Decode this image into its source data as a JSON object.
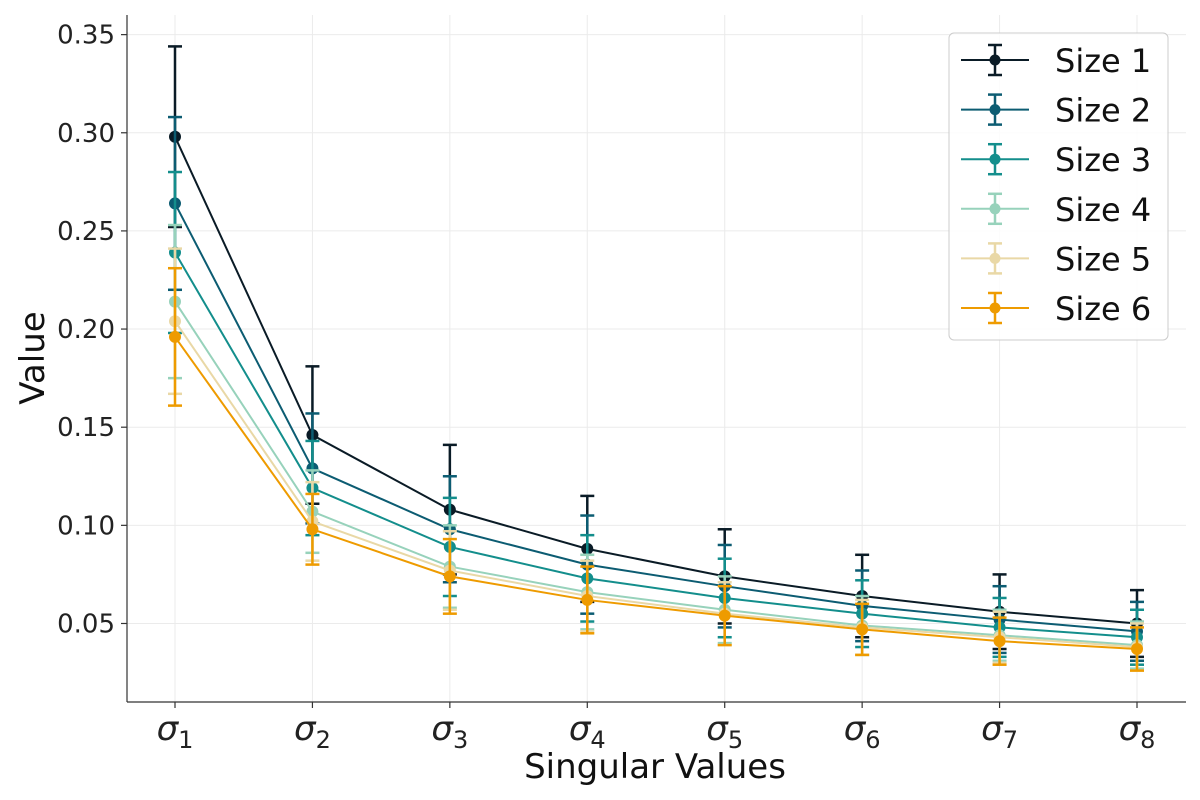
{
  "chart_data": {
    "type": "line",
    "xlabel": "Singular Values",
    "ylabel": "Value",
    "categories": [
      {
        "base": "σ",
        "sub": "1"
      },
      {
        "base": "σ",
        "sub": "2"
      },
      {
        "base": "σ",
        "sub": "3"
      },
      {
        "base": "σ",
        "sub": "4"
      },
      {
        "base": "σ",
        "sub": "5"
      },
      {
        "base": "σ",
        "sub": "6"
      },
      {
        "base": "σ",
        "sub": "7"
      },
      {
        "base": "σ",
        "sub": "8"
      }
    ],
    "ylim": [
      0.01,
      0.36
    ],
    "yticks": [
      0.05,
      0.1,
      0.15,
      0.2,
      0.25,
      0.3,
      0.35
    ],
    "ytick_labels": [
      "0.05",
      "0.10",
      "0.15",
      "0.20",
      "0.25",
      "0.30",
      "0.35"
    ],
    "grid": true,
    "legend_position": "top-right",
    "series": [
      {
        "name": "Size 1",
        "color": "#0a1b26",
        "values": [
          0.298,
          0.146,
          0.108,
          0.088,
          0.074,
          0.064,
          0.056,
          0.05
        ],
        "errors": [
          0.046,
          0.035,
          0.033,
          0.027,
          0.024,
          0.021,
          0.019,
          0.017
        ]
      },
      {
        "name": "Size 2",
        "color": "#0c5c72",
        "values": [
          0.264,
          0.129,
          0.098,
          0.08,
          0.069,
          0.059,
          0.052,
          0.046
        ],
        "errors": [
          0.044,
          0.028,
          0.027,
          0.025,
          0.021,
          0.018,
          0.017,
          0.015
        ]
      },
      {
        "name": "Size 3",
        "color": "#138e8c",
        "values": [
          0.239,
          0.119,
          0.089,
          0.073,
          0.063,
          0.055,
          0.048,
          0.043
        ],
        "errors": [
          0.041,
          0.024,
          0.025,
          0.022,
          0.02,
          0.017,
          0.015,
          0.014
        ]
      },
      {
        "name": "Size 4",
        "color": "#97d2bb",
        "values": [
          0.214,
          0.107,
          0.079,
          0.066,
          0.057,
          0.049,
          0.044,
          0.039
        ],
        "errors": [
          0.039,
          0.021,
          0.021,
          0.019,
          0.017,
          0.015,
          0.013,
          0.012
        ]
      },
      {
        "name": "Size 5",
        "color": "#e9d8a6",
        "values": [
          0.204,
          0.102,
          0.077,
          0.064,
          0.055,
          0.048,
          0.043,
          0.038
        ],
        "errors": [
          0.037,
          0.02,
          0.02,
          0.018,
          0.016,
          0.014,
          0.013,
          0.012
        ]
      },
      {
        "name": "Size 6",
        "color": "#ee9b00",
        "values": [
          0.196,
          0.098,
          0.074,
          0.062,
          0.054,
          0.047,
          0.041,
          0.037
        ],
        "errors": [
          0.035,
          0.018,
          0.019,
          0.017,
          0.015,
          0.013,
          0.012,
          0.011
        ]
      }
    ]
  }
}
